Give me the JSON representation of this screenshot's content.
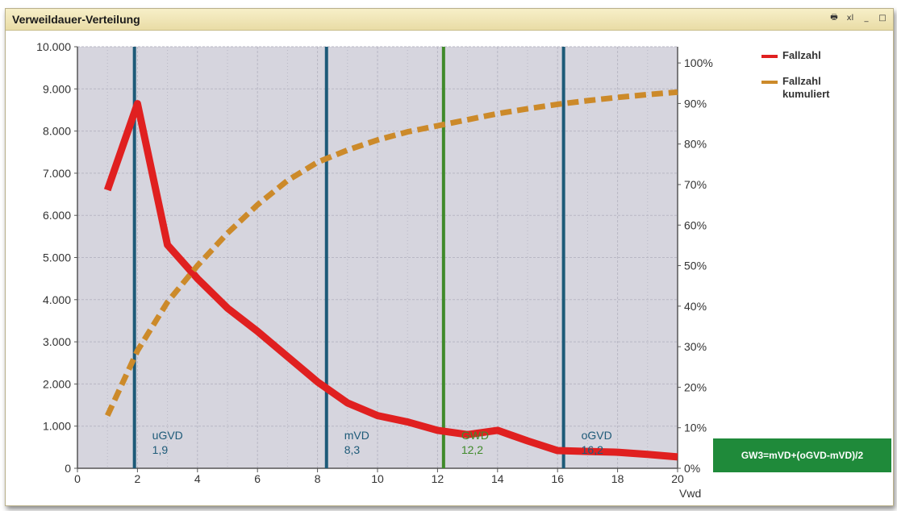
{
  "window": {
    "title": "Verweildauer-Verteilung",
    "controls": [
      {
        "name": "print-icon",
        "glyph": "🖶"
      },
      {
        "name": "export-excel-icon",
        "glyph": "xl"
      },
      {
        "name": "minimize-icon",
        "glyph": "_"
      },
      {
        "name": "maximize-icon",
        "glyph": "□"
      }
    ]
  },
  "legend": [
    {
      "label": "Fallzahl",
      "color": "#e02020",
      "style": "solid"
    },
    {
      "label": "Fallzahl kumuliert",
      "color": "#cc8a2a",
      "style": "dashed"
    }
  ],
  "formula": "GW3=mVD+(oGVD-mVD)/2",
  "chart_data": {
    "type": "line",
    "xlabel": "Vwd",
    "xlim": [
      0,
      20
    ],
    "x_ticks": [
      "0",
      "2",
      "4",
      "6",
      "8",
      "10",
      "12",
      "14",
      "16",
      "18",
      "20"
    ],
    "ylim_left": [
      0,
      10000
    ],
    "y_ticks_left": [
      "0",
      "1.000",
      "2.000",
      "3.000",
      "4.000",
      "5.000",
      "6.000",
      "7.000",
      "8.000",
      "9.000",
      "10.000"
    ],
    "ylim_right": [
      0,
      1.04
    ],
    "y_ticks_right": [
      "0%",
      "10%",
      "20%",
      "30%",
      "40%",
      "50%",
      "60%",
      "70%",
      "80%",
      "90%",
      "100%"
    ],
    "grid": true,
    "legend_position": "right",
    "series": [
      {
        "name": "Fallzahl",
        "axis": "left",
        "color": "#e02020",
        "x": [
          1,
          2,
          3,
          4,
          5,
          6,
          7,
          8,
          9,
          10,
          11,
          12,
          13,
          14,
          15,
          16,
          17,
          18,
          19,
          20
        ],
        "values": [
          6600,
          8650,
          5300,
          4500,
          3800,
          3250,
          2650,
          2050,
          1550,
          1250,
          1100,
          900,
          800,
          900,
          650,
          420,
          400,
          380,
          330,
          270
        ]
      },
      {
        "name": "Fallzahl kumuliert",
        "axis": "right",
        "color": "#cc8a2a",
        "x": [
          1,
          2,
          3,
          4,
          5,
          6,
          7,
          8,
          9,
          10,
          11,
          12,
          13,
          14,
          15,
          16,
          17,
          18,
          19,
          20
        ],
        "values": [
          0.13,
          0.29,
          0.41,
          0.5,
          0.58,
          0.65,
          0.71,
          0.755,
          0.785,
          0.81,
          0.83,
          0.845,
          0.86,
          0.875,
          0.887,
          0.898,
          0.907,
          0.915,
          0.922,
          0.928
        ]
      }
    ],
    "markers": [
      {
        "label": "uGVD",
        "value_text": "1,9",
        "x": 1.9,
        "color": "#1d5a78"
      },
      {
        "label": "mVD",
        "value_text": "8,3",
        "x": 8.3,
        "color": "#1d5a78"
      },
      {
        "label": "GWD",
        "value_text": "12,2",
        "x": 12.2,
        "color": "#3f8a2a"
      },
      {
        "label": "oGVD",
        "value_text": "16,2",
        "x": 16.2,
        "color": "#1d5a78"
      }
    ],
    "colors": {
      "plot_background": "#d6d5de",
      "grid": "#b8b7c4",
      "axis": "#555555"
    }
  }
}
